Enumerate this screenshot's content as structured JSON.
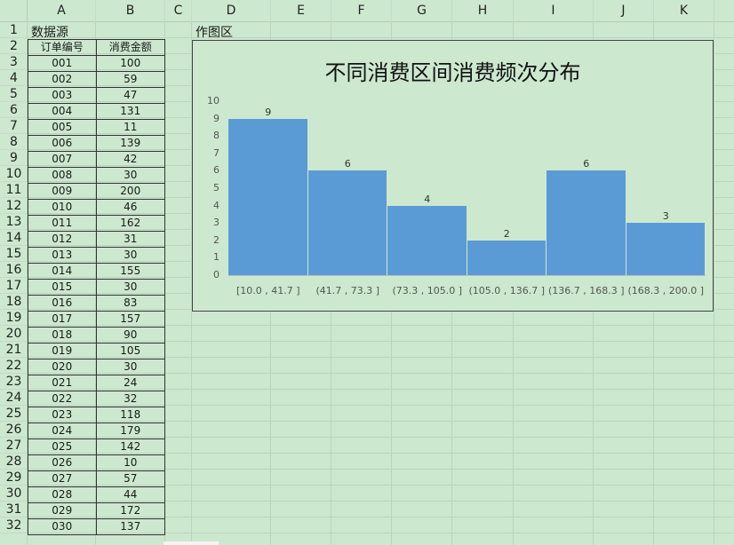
{
  "columns": [
    "A",
    "B",
    "C",
    "D",
    "E",
    "F",
    "G",
    "H",
    "I",
    "J",
    "K"
  ],
  "rows": [
    "1",
    "2",
    "3",
    "4",
    "5",
    "6",
    "7",
    "8",
    "9",
    "10",
    "11",
    "12",
    "13",
    "14",
    "15",
    "16",
    "17",
    "18",
    "19",
    "20",
    "21",
    "22",
    "23",
    "24",
    "25",
    "26",
    "27",
    "28",
    "29",
    "30",
    "31",
    "32"
  ],
  "a1_label": "数据源",
  "d1_label": "作图区",
  "table": {
    "headers": [
      "订单编号",
      "消费金额"
    ],
    "rows": [
      [
        "001",
        "100"
      ],
      [
        "002",
        "59"
      ],
      [
        "003",
        "47"
      ],
      [
        "004",
        "131"
      ],
      [
        "005",
        "11"
      ],
      [
        "006",
        "139"
      ],
      [
        "007",
        "42"
      ],
      [
        "008",
        "30"
      ],
      [
        "009",
        "200"
      ],
      [
        "010",
        "46"
      ],
      [
        "011",
        "162"
      ],
      [
        "012",
        "31"
      ],
      [
        "013",
        "30"
      ],
      [
        "014",
        "155"
      ],
      [
        "015",
        "30"
      ],
      [
        "016",
        "83"
      ],
      [
        "017",
        "157"
      ],
      [
        "018",
        "90"
      ],
      [
        "019",
        "105"
      ],
      [
        "020",
        "30"
      ],
      [
        "021",
        "24"
      ],
      [
        "022",
        "32"
      ],
      [
        "023",
        "118"
      ],
      [
        "024",
        "179"
      ],
      [
        "025",
        "142"
      ],
      [
        "026",
        "10"
      ],
      [
        "027",
        "57"
      ],
      [
        "028",
        "44"
      ],
      [
        "029",
        "172"
      ],
      [
        "030",
        "137"
      ]
    ]
  },
  "chart_data": {
    "type": "bar",
    "title": "不同消费区间消费频次分布",
    "categories": [
      "[10.0 , 41.7 ]",
      "(41.7 , 73.3 ]",
      "(73.3 , 105.0 ]",
      "(105.0 , 136.7 ]",
      "(136.7 , 168.3 ]",
      "(168.3 , 200.0 ]"
    ],
    "values": [
      9,
      6,
      4,
      2,
      6,
      3
    ],
    "ylim": [
      0,
      10
    ],
    "yticks": [
      "0",
      "1",
      "2",
      "3",
      "4",
      "5",
      "6",
      "7",
      "8",
      "9",
      "10"
    ],
    "xlabel": "",
    "ylabel": "",
    "bar_color": "#5b9bd5",
    "grid": false,
    "legend": "none"
  }
}
